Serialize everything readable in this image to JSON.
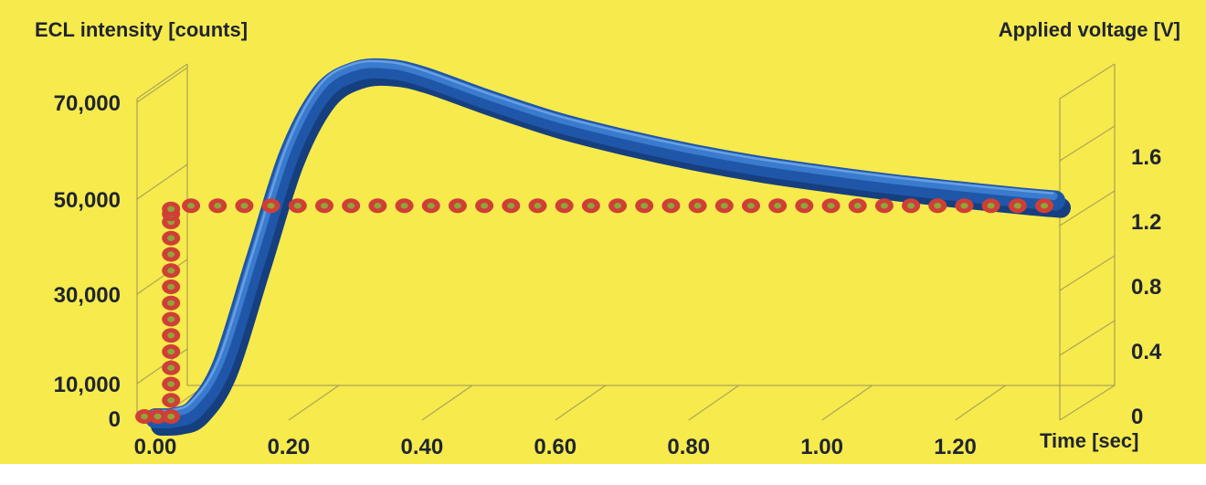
{
  "chart_data": {
    "type": "line",
    "title": "",
    "xlabel": "Time [sec]",
    "ylabel_left": "ECL intensity [counts]",
    "ylabel_right": "Applied voltage [V]",
    "x_ticks": [
      "0.00",
      "0.20",
      "0.40",
      "0.60",
      "0.80",
      "1.00",
      "1.20"
    ],
    "y_left_ticks": [
      "0",
      "10,000",
      "30,000",
      "50,000",
      "70,000"
    ],
    "y_right_ticks": [
      "0",
      "0.4",
      "0.8",
      "1.2",
      "1.6"
    ],
    "xlim": [
      0,
      1.35
    ],
    "ylim_left": [
      0,
      80000
    ],
    "ylim_right": [
      0,
      1.8
    ],
    "grid": false,
    "series": [
      {
        "axis": "left",
        "style": "3d-ribbon",
        "x": [
          0.0,
          0.03,
          0.06,
          0.1,
          0.15,
          0.2,
          0.25,
          0.3,
          0.35,
          0.4,
          0.5,
          0.6,
          0.7,
          0.8,
          0.9,
          1.0,
          1.1,
          1.2,
          1.3,
          1.35
        ],
        "y": [
          0,
          300,
          3000,
          14000,
          37000,
          59000,
          72000,
          76500,
          77000,
          75500,
          70500,
          66000,
          62500,
          59500,
          57000,
          55000,
          53200,
          51700,
          50300,
          49700
        ]
      },
      {
        "axis": "right",
        "style": "dotted",
        "x": [
          0.0,
          0.02,
          0.04,
          0.04,
          0.04,
          0.04,
          0.04,
          0.04,
          0.04,
          0.04,
          0.04,
          0.04,
          0.04,
          0.04,
          0.04,
          0.04,
          0.04,
          0.07,
          0.11,
          0.15,
          0.19,
          0.23,
          0.27,
          0.31,
          0.35,
          0.39,
          0.43,
          0.47,
          0.51,
          0.55,
          0.59,
          0.63,
          0.67,
          0.71,
          0.75,
          0.79,
          0.83,
          0.87,
          0.91,
          0.95,
          0.99,
          1.03,
          1.07,
          1.11,
          1.15,
          1.19,
          1.23,
          1.27,
          1.31,
          1.35
        ],
        "y": [
          0,
          0,
          0,
          0.1,
          0.2,
          0.3,
          0.4,
          0.5,
          0.6,
          0.7,
          0.8,
          0.9,
          1.0,
          1.1,
          1.2,
          1.25,
          1.28,
          1.3,
          1.3,
          1.3,
          1.3,
          1.3,
          1.3,
          1.3,
          1.3,
          1.3,
          1.3,
          1.3,
          1.3,
          1.3,
          1.3,
          1.3,
          1.3,
          1.3,
          1.3,
          1.3,
          1.3,
          1.3,
          1.3,
          1.3,
          1.3,
          1.3,
          1.3,
          1.3,
          1.3,
          1.3,
          1.3,
          1.3,
          1.3,
          1.3
        ]
      }
    ],
    "colors": {
      "background": "#f7ea4c",
      "ribbon_dark": "#1f56a8",
      "ribbon_light": "#3d7fd2",
      "dot_outer": "#cf3f36",
      "dot_inner": "#8fa43a",
      "frame": "#97925a",
      "text": "#1f2530"
    }
  }
}
